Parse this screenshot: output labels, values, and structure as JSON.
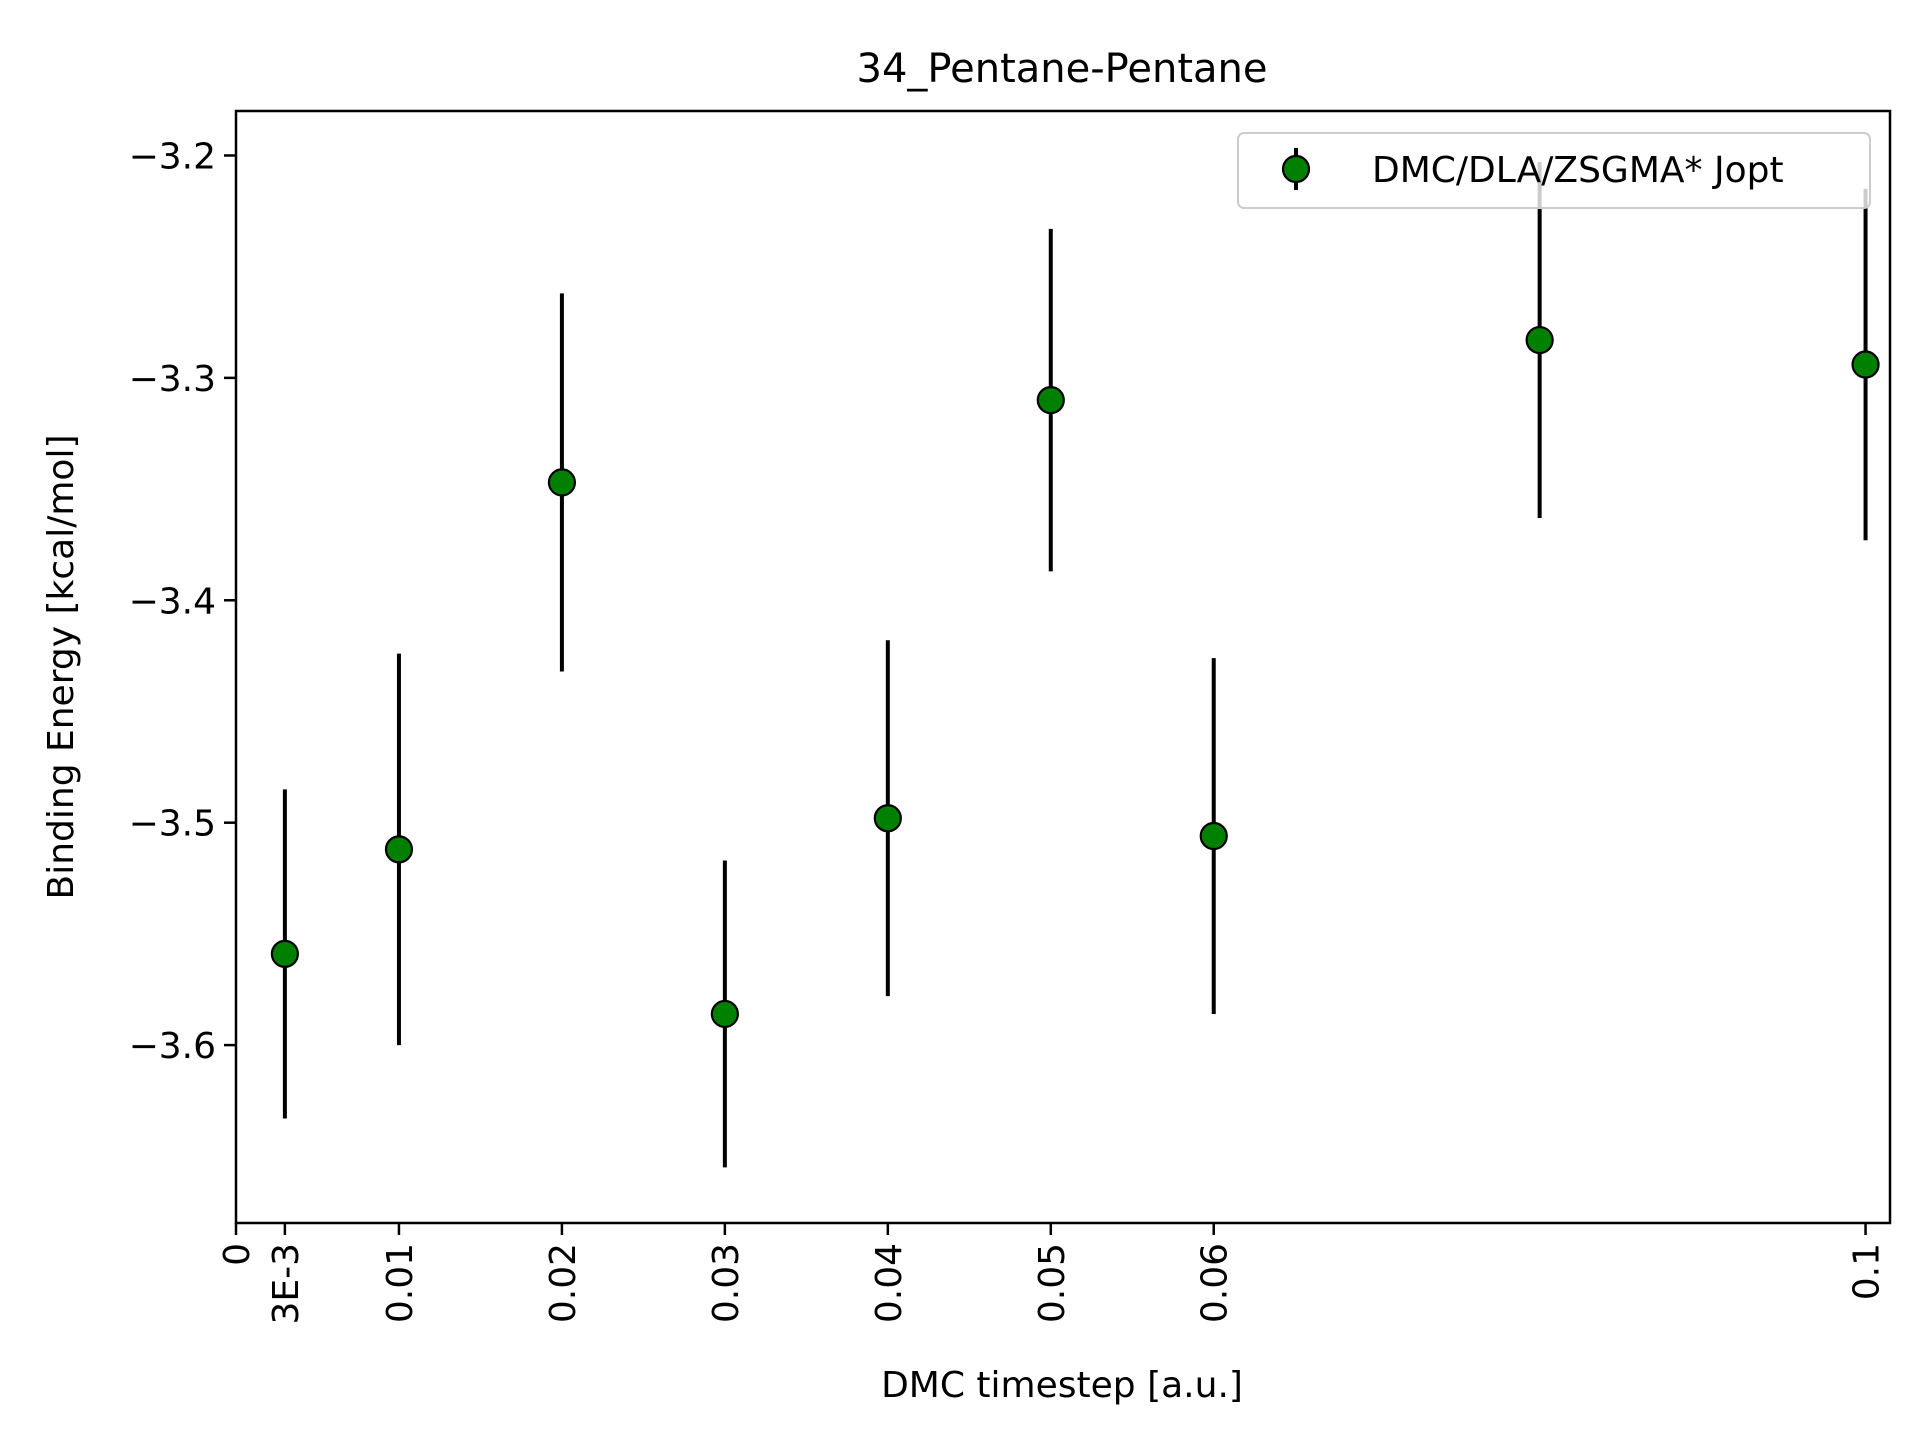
{
  "chart_data": {
    "type": "scatter",
    "title": "34_Pentane-Pentane",
    "xlabel": "DMC timestep [a.u.]",
    "ylabel": "Binding Energy [kcal/mol]",
    "xlim": [
      0,
      0.1015
    ],
    "ylim": [
      -3.68,
      -3.18
    ],
    "x_ticks": [
      {
        "value": 0,
        "label": "0"
      },
      {
        "value": 0.003,
        "label": "3E-3"
      },
      {
        "value": 0.01,
        "label": "0.01"
      },
      {
        "value": 0.02,
        "label": "0.02"
      },
      {
        "value": 0.03,
        "label": "0.03"
      },
      {
        "value": 0.04,
        "label": "0.04"
      },
      {
        "value": 0.05,
        "label": "0.05"
      },
      {
        "value": 0.06,
        "label": "0.06"
      },
      {
        "value": 0.1,
        "label": "0.1"
      }
    ],
    "y_ticks": [
      {
        "value": -3.2,
        "label": "−3.2"
      },
      {
        "value": -3.3,
        "label": "−3.3"
      },
      {
        "value": -3.4,
        "label": "−3.4"
      },
      {
        "value": -3.5,
        "label": "−3.5"
      },
      {
        "value": -3.6,
        "label": "−3.6"
      }
    ],
    "grid": false,
    "legend_position": "top-right",
    "series": [
      {
        "name": "DMC/DLA/ZSGMA* Jopt",
        "color": "#008000",
        "edge_color": "#000000",
        "errorbar_color": "#000000",
        "points": [
          {
            "x": 0.003,
            "y": -3.559,
            "err": 0.074
          },
          {
            "x": 0.01,
            "y": -3.512,
            "err": 0.088
          },
          {
            "x": 0.02,
            "y": -3.347,
            "err": 0.085
          },
          {
            "x": 0.03,
            "y": -3.586,
            "err": 0.069
          },
          {
            "x": 0.04,
            "y": -3.498,
            "err": 0.08
          },
          {
            "x": 0.05,
            "y": -3.31,
            "err": 0.077
          },
          {
            "x": 0.06,
            "y": -3.506,
            "err": 0.08
          },
          {
            "x": 0.08,
            "y": -3.283,
            "err": 0.08
          },
          {
            "x": 0.1,
            "y": -3.294,
            "err": 0.079
          }
        ]
      }
    ]
  }
}
